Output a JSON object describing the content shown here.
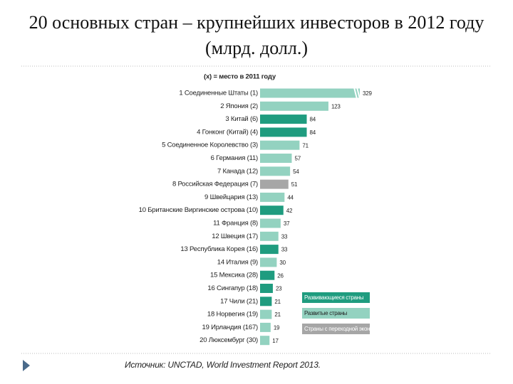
{
  "chart_data": {
    "type": "bar",
    "orientation": "horizontal",
    "title": "20 основных стран – крупнейших инвесторов в 2012 году (млрд. долл.)",
    "subtitle": "(x) = место в 2011 году",
    "source": "Источник: UNCTAD, World Investment Report 2013.",
    "categories": [
      "1 Соединенные Штаты (1)",
      "2 Япония (2)",
      "3 Китай (6)",
      "4 Гонконг (Китай) (4)",
      "5 Соединенное Королевство (3)",
      "6 Германия (11)",
      "7 Канада (12)",
      "8 Российская Федерация (7)",
      "9 Швейцария (13)",
      "10 Британские Виргинские острова (10)",
      "11 Франция (8)",
      "12 Швеция (17)",
      "13 Республика Корея (16)",
      "14 Италия (9)",
      "15 Мексика (28)",
      "16 Сингапур (18)",
      "17 Чили (21)",
      "18 Норвегия (19)",
      "19 Ирландия (167)",
      "20 Люксембург (30)"
    ],
    "series": [
      {
        "name": "Развивающиеся страны",
        "color": "#1f9c7f",
        "values": [
          null,
          null,
          84,
          84,
          null,
          null,
          null,
          null,
          null,
          42,
          null,
          null,
          33,
          null,
          26,
          23,
          21,
          null,
          null,
          null
        ]
      },
      {
        "name": "Развитые страны",
        "color": "#93d2c0",
        "values": [
          329,
          123,
          null,
          null,
          71,
          57,
          54,
          null,
          44,
          null,
          37,
          33,
          null,
          30,
          null,
          null,
          null,
          21,
          19,
          17
        ]
      },
      {
        "name": "Страны с переходной экономикой",
        "color": "#a6a6a6",
        "values": [
          null,
          null,
          null,
          null,
          null,
          null,
          null,
          51,
          null,
          null,
          null,
          null,
          null,
          null,
          null,
          null,
          null,
          null,
          null,
          null
        ]
      }
    ]
  }
}
